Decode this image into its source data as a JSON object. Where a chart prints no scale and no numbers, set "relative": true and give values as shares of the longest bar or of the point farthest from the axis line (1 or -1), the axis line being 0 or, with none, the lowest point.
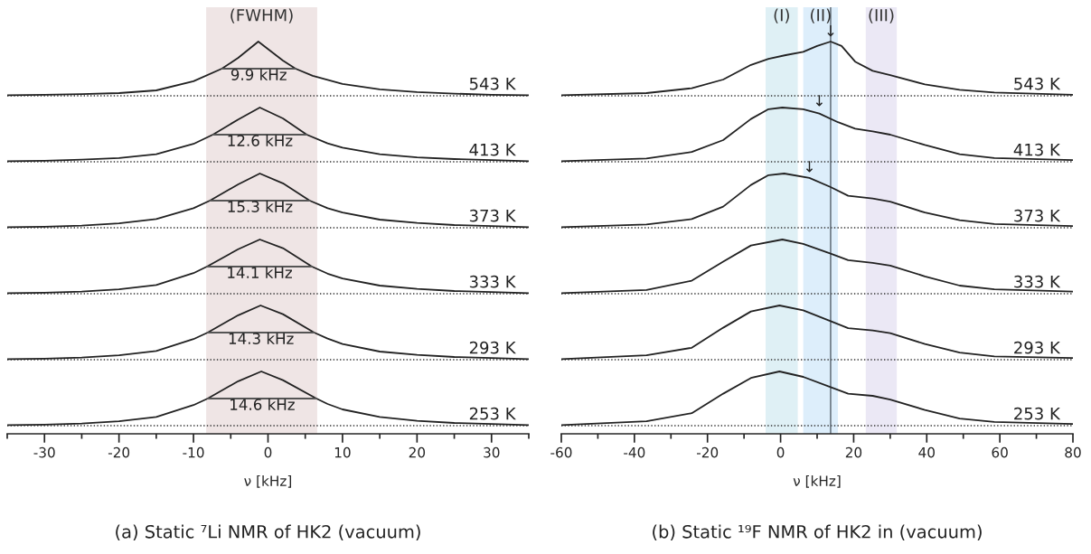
{
  "chart_data": [
    {
      "type": "line",
      "relative": true,
      "xlim": [
        -35,
        35
      ],
      "tick_labels": false,
      "bands": [
        {
          "axis": "x",
          "from": -8.3,
          "to": 6.6,
          "label": "(FWHM)",
          "color": "#efe5e5"
        }
      ],
      "ref_lines": [
        {
          "axis": "y",
          "value": 0,
          "line_style": "dotted",
          "color": "#333333"
        }
      ],
      "annotations": [
        "9.9 kHz"
      ],
      "series": [
        {
          "name": "543 K",
          "color": "#222222",
          "x": [
            -35,
            -30,
            -25,
            -20,
            -15,
            -10,
            -6.2,
            -4,
            -1.3,
            2,
            3.7,
            6,
            10,
            15,
            20,
            25,
            30,
            35
          ],
          "values": [
            0.01,
            0.02,
            0.03,
            0.05,
            0.1,
            0.27,
            0.5,
            0.7,
            1,
            0.65,
            0.5,
            0.37,
            0.22,
            0.12,
            0.07,
            0.04,
            0.02,
            0.01
          ]
        },
        {
          "type": "line",
          "color": "#555555",
          "x": [
            -6.2,
            3.7
          ],
          "values": [
            0.5,
            0.5
          ]
        }
      ]
    },
    {
      "type": "line",
      "relative": true,
      "xlim": [
        -35,
        35
      ],
      "tick_labels": false,
      "bands": [
        {
          "axis": "x",
          "from": -8.3,
          "to": 6.6,
          "color": "#efe5e5"
        }
      ],
      "ref_lines": [
        {
          "axis": "y",
          "value": 0,
          "line_style": "dotted",
          "color": "#333333"
        }
      ],
      "annotations": [
        "12.6 kHz"
      ],
      "series": [
        {
          "name": "413 K",
          "color": "#222222",
          "x": [
            -35,
            -30,
            -25,
            -20,
            -15,
            -10,
            -7.4,
            -4,
            -1.1,
            2,
            5.2,
            8,
            10,
            15,
            20,
            25,
            30,
            35
          ],
          "values": [
            0.01,
            0.02,
            0.04,
            0.07,
            0.14,
            0.33,
            0.5,
            0.78,
            1,
            0.8,
            0.5,
            0.34,
            0.26,
            0.14,
            0.08,
            0.05,
            0.03,
            0.01
          ]
        },
        {
          "type": "line",
          "color": "#555555",
          "x": [
            -7.4,
            5.2
          ],
          "values": [
            0.5,
            0.5
          ]
        }
      ]
    },
    {
      "type": "line",
      "relative": true,
      "xlim": [
        -35,
        35
      ],
      "tick_labels": false,
      "bands": [
        {
          "axis": "x",
          "from": -8.3,
          "to": 6.6,
          "color": "#efe5e5"
        }
      ],
      "ref_lines": [
        {
          "axis": "y",
          "value": 0,
          "line_style": "dotted",
          "color": "#333333"
        }
      ],
      "annotations": [
        "15.3 kHz"
      ],
      "series": [
        {
          "name": "373 K",
          "color": "#222222",
          "x": [
            -35,
            -30,
            -25,
            -20,
            -15,
            -10,
            -7.8,
            -4,
            -1.1,
            2,
            5.6,
            8,
            10,
            15,
            20,
            25,
            30,
            35
          ],
          "values": [
            0.01,
            0.02,
            0.04,
            0.08,
            0.16,
            0.36,
            0.5,
            0.8,
            1,
            0.82,
            0.5,
            0.36,
            0.28,
            0.15,
            0.09,
            0.05,
            0.03,
            0.01
          ]
        },
        {
          "type": "line",
          "color": "#555555",
          "x": [
            -7.8,
            5.6
          ],
          "values": [
            0.5,
            0.5
          ]
        }
      ]
    },
    {
      "type": "line",
      "relative": true,
      "xlim": [
        -35,
        35
      ],
      "tick_labels": false,
      "bands": [
        {
          "axis": "x",
          "from": -8.3,
          "to": 6.6,
          "color": "#efe5e5"
        }
      ],
      "ref_lines": [
        {
          "axis": "y",
          "value": 0,
          "line_style": "dotted",
          "color": "#333333"
        }
      ],
      "annotations": [
        "14.1 kHz"
      ],
      "series": [
        {
          "name": "333 K",
          "color": "#222222",
          "x": [
            -35,
            -30,
            -25,
            -20,
            -15,
            -10,
            -8.2,
            -4,
            -1.1,
            2,
            5.9,
            8,
            10,
            15,
            20,
            25,
            30,
            35
          ],
          "values": [
            0.01,
            0.02,
            0.04,
            0.08,
            0.16,
            0.38,
            0.5,
            0.82,
            1,
            0.84,
            0.5,
            0.37,
            0.28,
            0.15,
            0.09,
            0.05,
            0.03,
            0.01
          ]
        },
        {
          "type": "line",
          "color": "#555555",
          "x": [
            -8.2,
            5.9
          ],
          "values": [
            0.5,
            0.5
          ]
        }
      ]
    },
    {
      "type": "line",
      "relative": true,
      "xlim": [
        -35,
        35
      ],
      "tick_labels": false,
      "bands": [
        {
          "axis": "x",
          "from": -8.3,
          "to": 6.6,
          "color": "#efe5e5"
        }
      ],
      "ref_lines": [
        {
          "axis": "y",
          "value": 0,
          "line_style": "dotted",
          "color": "#333333"
        }
      ],
      "annotations": [
        "14.3 kHz"
      ],
      "series": [
        {
          "name": "293 K",
          "color": "#222222",
          "x": [
            -35,
            -30,
            -25,
            -20,
            -15,
            -10,
            -8.1,
            -4,
            -1.0,
            2,
            6.2,
            8,
            10,
            15,
            20,
            25,
            30,
            35
          ],
          "values": [
            0.01,
            0.02,
            0.04,
            0.08,
            0.16,
            0.38,
            0.5,
            0.82,
            1,
            0.84,
            0.5,
            0.39,
            0.29,
            0.15,
            0.09,
            0.05,
            0.03,
            0.01
          ]
        },
        {
          "type": "line",
          "color": "#555555",
          "x": [
            -8.1,
            6.2
          ],
          "values": [
            0.5,
            0.5
          ]
        }
      ]
    },
    {
      "type": "line",
      "relative": true,
      "xlim": [
        -35,
        35
      ],
      "xlabel": "ν [kHz]",
      "xticks": [
        {
          "value": -35,
          "label": null
        },
        -30,
        {
          "value": -25,
          "label": null
        },
        -20,
        {
          "value": -15,
          "label": null
        },
        -10,
        {
          "value": -5,
          "label": null
        },
        0,
        {
          "value": 5,
          "label": null
        },
        10,
        {
          "value": 15,
          "label": null
        },
        20,
        {
          "value": 25,
          "label": null
        },
        30,
        {
          "value": 35,
          "label": null
        }
      ],
      "bands": [
        {
          "axis": "x",
          "from": -8.3,
          "to": 6.6,
          "color": "#efe5e5"
        }
      ],
      "ref_lines": [
        {
          "axis": "y",
          "value": 0,
          "line_style": "dotted",
          "color": "#333333"
        }
      ],
      "annotations": [
        "14.6 kHz",
        "(a) Static ⁷Li NMR of HK2 (vacuum)"
      ],
      "series": [
        {
          "name": "253 K",
          "color": "#222222",
          "x": [
            -35,
            -30,
            -25,
            -20,
            -15,
            -10,
            -8.1,
            -4,
            -0.9,
            2,
            6.5,
            8,
            10,
            15,
            20,
            25,
            30,
            35
          ],
          "values": [
            0.01,
            0.02,
            0.04,
            0.08,
            0.16,
            0.38,
            0.5,
            0.82,
            1,
            0.84,
            0.5,
            0.4,
            0.3,
            0.16,
            0.09,
            0.05,
            0.03,
            0.01
          ]
        },
        {
          "type": "line",
          "color": "#555555",
          "x": [
            -8.1,
            6.5
          ],
          "values": [
            0.5,
            0.5
          ]
        }
      ]
    },
    {
      "type": "line",
      "relative": true,
      "xlim": [
        -60,
        80
      ],
      "tick_labels": false,
      "bands": [
        {
          "axis": "x",
          "from": -4.1,
          "to": 4.7,
          "label": "(I)",
          "color": "#dff0f5"
        },
        {
          "axis": "x",
          "from": 6.2,
          "to": 15.7,
          "label": "(II)",
          "color": "#ddeefb"
        },
        {
          "axis": "x",
          "from": 23.3,
          "to": 31.8,
          "label": "(III)",
          "color": "#ebe8f5"
        }
      ],
      "ref_lines": [
        {
          "axis": "y",
          "value": 0,
          "line_style": "dotted",
          "color": "#333333"
        },
        {
          "axis": "x",
          "value": 13.7,
          "color": "#55606a"
        }
      ],
      "annotations": [
        {
          "text": "↓",
          "x": 13.7,
          "y": 1.04
        }
      ],
      "series": [
        {
          "name": "543 K",
          "color": "#222222",
          "x": [
            -60,
            -36.7,
            -24.3,
            -15.7,
            -8.1,
            -3.3,
            1.4,
            6.2,
            10.0,
            13.7,
            16.7,
            20.4,
            25.2,
            30.0,
            39.5,
            49.0,
            58.5,
            80
          ],
          "values": [
            0.01,
            0.05,
            0.14,
            0.3,
            0.57,
            0.68,
            0.75,
            0.81,
            0.92,
            1,
            0.92,
            0.63,
            0.46,
            0.38,
            0.21,
            0.11,
            0.06,
            0.02
          ]
        }
      ]
    },
    {
      "type": "line",
      "relative": true,
      "xlim": [
        -60,
        80
      ],
      "tick_labels": false,
      "bands": [
        {
          "axis": "x",
          "from": -4.1,
          "to": 4.7,
          "color": "#dff0f5"
        },
        {
          "axis": "x",
          "from": 6.2,
          "to": 15.7,
          "color": "#ddeefb"
        },
        {
          "axis": "x",
          "from": 23.3,
          "to": 31.8,
          "color": "#ebe8f5"
        }
      ],
      "ref_lines": [
        {
          "axis": "y",
          "value": 0,
          "line_style": "dotted",
          "color": "#333333"
        },
        {
          "axis": "x",
          "value": 13.7,
          "color": "#55606a"
        }
      ],
      "annotations": [
        {
          "text": "↓",
          "x": 10.6,
          "y": 0.97
        }
      ],
      "series": [
        {
          "name": "413 K",
          "color": "#222222",
          "x": [
            -60,
            -36.7,
            -24.3,
            -15.7,
            -8.1,
            -3.3,
            0.5,
            6.2,
            10.6,
            15.7,
            20.4,
            25.2,
            30.0,
            39.5,
            49.0,
            58.5,
            80
          ],
          "values": [
            0.01,
            0.06,
            0.18,
            0.4,
            0.79,
            0.97,
            1,
            0.97,
            0.89,
            0.73,
            0.61,
            0.56,
            0.5,
            0.31,
            0.14,
            0.07,
            0.03
          ]
        }
      ]
    },
    {
      "type": "line",
      "relative": true,
      "xlim": [
        -60,
        80
      ],
      "tick_labels": false,
      "bands": [
        {
          "axis": "x",
          "from": -4.1,
          "to": 4.7,
          "color": "#dff0f5"
        },
        {
          "axis": "x",
          "from": 6.2,
          "to": 15.7,
          "color": "#ddeefb"
        },
        {
          "axis": "x",
          "from": 23.3,
          "to": 31.8,
          "color": "#ebe8f5"
        }
      ],
      "ref_lines": [
        {
          "axis": "y",
          "value": 0,
          "line_style": "dotted",
          "color": "#333333"
        },
        {
          "axis": "x",
          "value": 13.7,
          "color": "#55606a"
        }
      ],
      "annotations": [
        {
          "text": "↓",
          "x": 7.9,
          "y": 0.97
        }
      ],
      "series": [
        {
          "name": "373 K",
          "color": "#222222",
          "x": [
            -60,
            -36.7,
            -24.3,
            -15.7,
            -8.1,
            -3.3,
            1.0,
            7.9,
            13.7,
            18.5,
            25.2,
            30.0,
            39.5,
            49.0,
            58.5,
            80
          ],
          "values": [
            0.01,
            0.06,
            0.16,
            0.39,
            0.79,
            0.97,
            1,
            0.92,
            0.75,
            0.59,
            0.54,
            0.48,
            0.28,
            0.14,
            0.07,
            0.03
          ]
        }
      ]
    },
    {
      "type": "line",
      "relative": true,
      "xlim": [
        -60,
        80
      ],
      "tick_labels": false,
      "bands": [
        {
          "axis": "x",
          "from": -4.1,
          "to": 4.7,
          "color": "#dff0f5"
        },
        {
          "axis": "x",
          "from": 6.2,
          "to": 15.7,
          "color": "#ddeefb"
        },
        {
          "axis": "x",
          "from": 23.3,
          "to": 31.8,
          "color": "#ebe8f5"
        }
      ],
      "ref_lines": [
        {
          "axis": "y",
          "value": 0,
          "line_style": "dotted",
          "color": "#333333"
        },
        {
          "axis": "x",
          "value": 13.7,
          "color": "#55606a"
        }
      ],
      "series": [
        {
          "name": "333 K",
          "color": "#222222",
          "x": [
            -60,
            -36.7,
            -24.3,
            -15.7,
            -8.1,
            0.5,
            6.2,
            13.7,
            18.5,
            25.2,
            30.0,
            39.5,
            49.0,
            58.5,
            80
          ],
          "values": [
            0.01,
            0.07,
            0.24,
            0.59,
            0.89,
            1,
            0.92,
            0.74,
            0.62,
            0.57,
            0.52,
            0.32,
            0.15,
            0.08,
            0.04
          ]
        }
      ]
    },
    {
      "type": "line",
      "relative": true,
      "xlim": [
        -60,
        80
      ],
      "tick_labels": false,
      "bands": [
        {
          "axis": "x",
          "from": -4.1,
          "to": 4.7,
          "color": "#dff0f5"
        },
        {
          "axis": "x",
          "from": 6.2,
          "to": 15.7,
          "color": "#ddeefb"
        },
        {
          "axis": "x",
          "from": 23.3,
          "to": 31.8,
          "color": "#ebe8f5"
        }
      ],
      "ref_lines": [
        {
          "axis": "y",
          "value": 0,
          "line_style": "dotted",
          "color": "#333333"
        },
        {
          "axis": "x",
          "value": 13.7,
          "color": "#55606a"
        }
      ],
      "series": [
        {
          "name": "293 K",
          "color": "#222222",
          "x": [
            -60,
            -36.7,
            -24.3,
            -15.7,
            -8.1,
            -0.3,
            6.2,
            13.7,
            18.5,
            25.2,
            30.0,
            39.5,
            49.0,
            58.5,
            80
          ],
          "values": [
            0.01,
            0.08,
            0.22,
            0.59,
            0.89,
            1,
            0.91,
            0.71,
            0.58,
            0.54,
            0.49,
            0.29,
            0.13,
            0.06,
            0.03
          ]
        }
      ]
    },
    {
      "type": "line",
      "relative": true,
      "xlim": [
        -60,
        80
      ],
      "xlabel": "ν [kHz]",
      "xticks": [
        -60,
        {
          "value": -50,
          "label": null
        },
        -40,
        {
          "value": -30,
          "label": null
        },
        -20,
        {
          "value": -10,
          "label": null
        },
        0,
        {
          "value": 10,
          "label": null
        },
        20,
        {
          "value": 30,
          "label": null
        },
        40,
        {
          "value": 50,
          "label": null
        },
        60,
        {
          "value": 70,
          "label": null
        },
        80
      ],
      "bands": [
        {
          "axis": "x",
          "from": -4.1,
          "to": 4.7,
          "color": "#dff0f5"
        },
        {
          "axis": "x",
          "from": 6.2,
          "to": 15.7,
          "color": "#ddeefb"
        },
        {
          "axis": "x",
          "from": 23.3,
          "to": 31.8,
          "color": "#ebe8f5"
        }
      ],
      "ref_lines": [
        {
          "axis": "y",
          "value": 0,
          "line_style": "dotted",
          "color": "#333333"
        },
        {
          "axis": "x",
          "value": 13.7,
          "color": "#55606a"
        }
      ],
      "annotations": [
        "(b) Static ¹⁹F NMR of HK2 in (vacuum)"
      ],
      "series": [
        {
          "name": "253 K",
          "color": "#222222",
          "x": [
            -60,
            -36.7,
            -24.3,
            -15.7,
            -8.1,
            -0.3,
            6.2,
            13.7,
            18.5,
            25.2,
            30.0,
            39.5,
            49.0,
            58.5,
            80
          ],
          "values": [
            0.01,
            0.08,
            0.23,
            0.59,
            0.88,
            1,
            0.9,
            0.71,
            0.59,
            0.55,
            0.48,
            0.29,
            0.13,
            0.07,
            0.03
          ]
        }
      ]
    }
  ]
}
